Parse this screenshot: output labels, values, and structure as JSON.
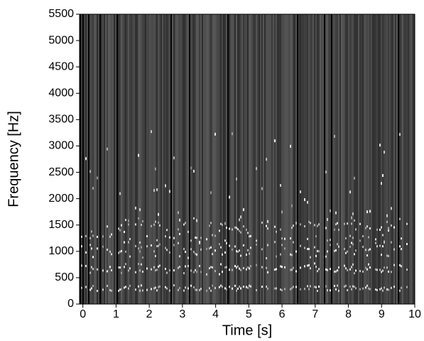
{
  "chart_data": {
    "type": "spectrogram",
    "xlabel": "Time [s]",
    "ylabel": "Frequency [Hz]",
    "xlim": [
      -0.1,
      10.0
    ],
    "xticks": [
      0,
      1,
      2,
      3,
      4,
      5,
      6,
      7,
      8,
      9,
      10
    ],
    "ylim": [
      0,
      5500
    ],
    "yticks": [
      0,
      500,
      1000,
      1500,
      2000,
      2500,
      3000,
      3500,
      4000,
      4500,
      5000,
      5500
    ]
  }
}
